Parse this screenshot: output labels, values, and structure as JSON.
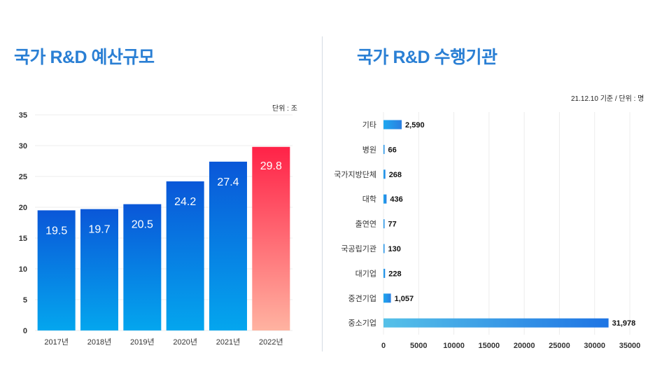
{
  "left_panel": {
    "title": "국가 R&D 예산규모",
    "unit_label": "단위 : 조"
  },
  "right_panel": {
    "title": "국가 R&D 수행기관",
    "unit_label": "21.12.10 기준 / 단위 : 명"
  },
  "chart_data": [
    {
      "type": "bar",
      "title": "국가 R&D 예산규모",
      "categories": [
        "2017년",
        "2018년",
        "2019년",
        "2020년",
        "2021년",
        "2022년"
      ],
      "values": [
        19.5,
        19.7,
        20.5,
        24.2,
        27.4,
        29.8
      ],
      "value_labels": [
        "19.5",
        "19.7",
        "20.5",
        "24.2",
        "27.4",
        "29.8"
      ],
      "ylim": [
        0,
        35
      ],
      "yticks": [
        0,
        5,
        10,
        15,
        20,
        25,
        30,
        35
      ],
      "ytick_labels": [
        "0",
        "5",
        "10",
        "15",
        "20",
        "25",
        "30",
        "35"
      ],
      "grid": true,
      "colors": {
        "bar_top": "#0a57d8",
        "bar_bottom": "#04a6ee",
        "highlight_top": "#ff2247",
        "highlight_bottom": "#ffb3a1"
      }
    },
    {
      "type": "bar",
      "orientation": "horizontal",
      "title": "국가 R&D 수행기관",
      "categories": [
        "기타",
        "병원",
        "국가지방단체",
        "대학",
        "출연연",
        "국공립기관",
        "대기업",
        "중견기업",
        "중소기업"
      ],
      "values": [
        2590,
        66,
        268,
        436,
        77,
        130,
        228,
        1057,
        31978
      ],
      "value_labels": [
        "2,590",
        "66",
        "268",
        "436",
        "77",
        "130",
        "228",
        "1,057",
        "31,978"
      ],
      "xlim": [
        0,
        35000
      ],
      "xticks": [
        0,
        5000,
        10000,
        15000,
        20000,
        25000,
        30000,
        35000
      ],
      "xtick_labels": [
        "0",
        "5000",
        "10000",
        "15000",
        "20000",
        "25000",
        "30000",
        "35000"
      ],
      "grid": true,
      "colors": {
        "bar_start": "#1ea8f0",
        "bar_end": "#2b7fe0",
        "last_bar_start": "#56c1e8",
        "last_bar_end": "#1e74e4"
      }
    }
  ]
}
